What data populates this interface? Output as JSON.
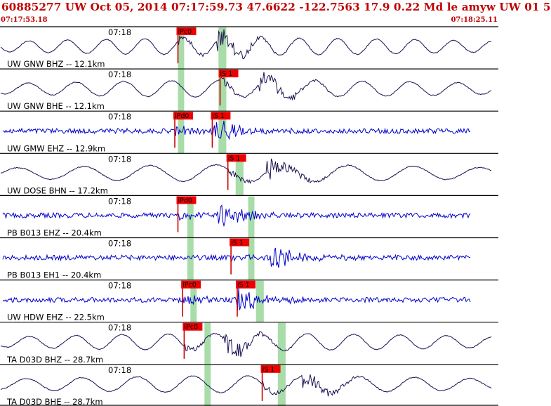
{
  "header": {
    "title": "60885277 UW Oct 05, 2014 07:17:59.73    47.6622 -122.7563 17.9 0.22 Md le amyw UW 01    5",
    "start_time": "07:17:53.18",
    "end_time": "07:18:25.11"
  },
  "colors": {
    "title": "#c00000",
    "pick_box": "#ee0000",
    "pick_line": "#cc0000",
    "window": "#a8dca8",
    "trace_broadband": "#1a1050",
    "trace_shortperiod": "#0000cc",
    "axis": "#000000"
  },
  "chart_data": {
    "type": "line",
    "time_range": [
      "07:17:53.18",
      "07:18:25.11"
    ],
    "traces": [
      {
        "label": "UW GNW BHZ -- 12.1km",
        "time_tick": "07:18",
        "kind": "broadband",
        "picks": [
          {
            "label": "iPc0",
            "t": 11.4
          }
        ],
        "windows": [
          {
            "start": 11.4,
            "end": 11.8
          },
          {
            "start": 14.0,
            "end": 14.5
          }
        ]
      },
      {
        "label": "UW GNW BHE -- 12.1km",
        "time_tick": "07:18",
        "kind": "broadband",
        "picks": [
          {
            "label": "iS 1",
            "t": 14.1
          }
        ],
        "windows": [
          {
            "start": 11.4,
            "end": 11.8
          },
          {
            "start": 14.0,
            "end": 14.5
          }
        ]
      },
      {
        "label": "UW GMW EHZ -- 12.9km",
        "time_tick": "07:18",
        "kind": "shortperiod",
        "picks": [
          {
            "label": "iPd0",
            "t": 11.2
          },
          {
            "label": "iS 1",
            "t": 13.6
          }
        ],
        "windows": [
          {
            "start": 11.4,
            "end": 11.8
          },
          {
            "start": 14.0,
            "end": 14.5
          }
        ]
      },
      {
        "label": "UW DOSE BHN -- 17.2km",
        "time_tick": "07:18",
        "kind": "broadband",
        "picks": [
          {
            "label": "iS 1",
            "t": 14.6
          }
        ],
        "windows": [
          {
            "start": 15.1,
            "end": 15.6
          }
        ]
      },
      {
        "label": "PB B013 EHZ -- 20.4km",
        "time_tick": "07:18",
        "kind": "shortperiod",
        "picks": [
          {
            "label": "iPd0",
            "t": 11.4
          }
        ],
        "windows": [
          {
            "start": 12.0,
            "end": 12.4
          },
          {
            "start": 15.9,
            "end": 16.3
          }
        ]
      },
      {
        "label": "PB B013 EH1 -- 20.4km",
        "time_tick": "07:18",
        "kind": "shortperiod",
        "picks": [
          {
            "label": "iS 1",
            "t": 14.8
          }
        ],
        "windows": [
          {
            "start": 12.0,
            "end": 12.4
          },
          {
            "start": 15.9,
            "end": 16.3
          }
        ]
      },
      {
        "label": "UW HDW EHZ -- 22.5km",
        "time_tick": "07:18",
        "kind": "shortperiod",
        "picks": [
          {
            "label": "iPc0",
            "t": 11.7
          },
          {
            "label": "iS 1",
            "t": 15.2
          }
        ],
        "windows": [
          {
            "start": 12.2,
            "end": 12.6
          },
          {
            "start": 16.4,
            "end": 16.9
          }
        ]
      },
      {
        "label": "TA D03D BHZ -- 28.7km",
        "time_tick": "07:18",
        "kind": "broadband",
        "picks": [
          {
            "label": "iPc0",
            "t": 11.8
          }
        ],
        "windows": [
          {
            "start": 13.1,
            "end": 13.5
          },
          {
            "start": 17.8,
            "end": 18.3
          }
        ]
      },
      {
        "label": "TA D03D BHE -- 28.7km",
        "time_tick": "07:18",
        "kind": "broadband",
        "picks": [
          {
            "label": "iS 1",
            "t": 16.8
          }
        ],
        "windows": [
          {
            "start": 13.1,
            "end": 13.5
          },
          {
            "start": 17.8,
            "end": 18.3
          }
        ]
      }
    ]
  }
}
